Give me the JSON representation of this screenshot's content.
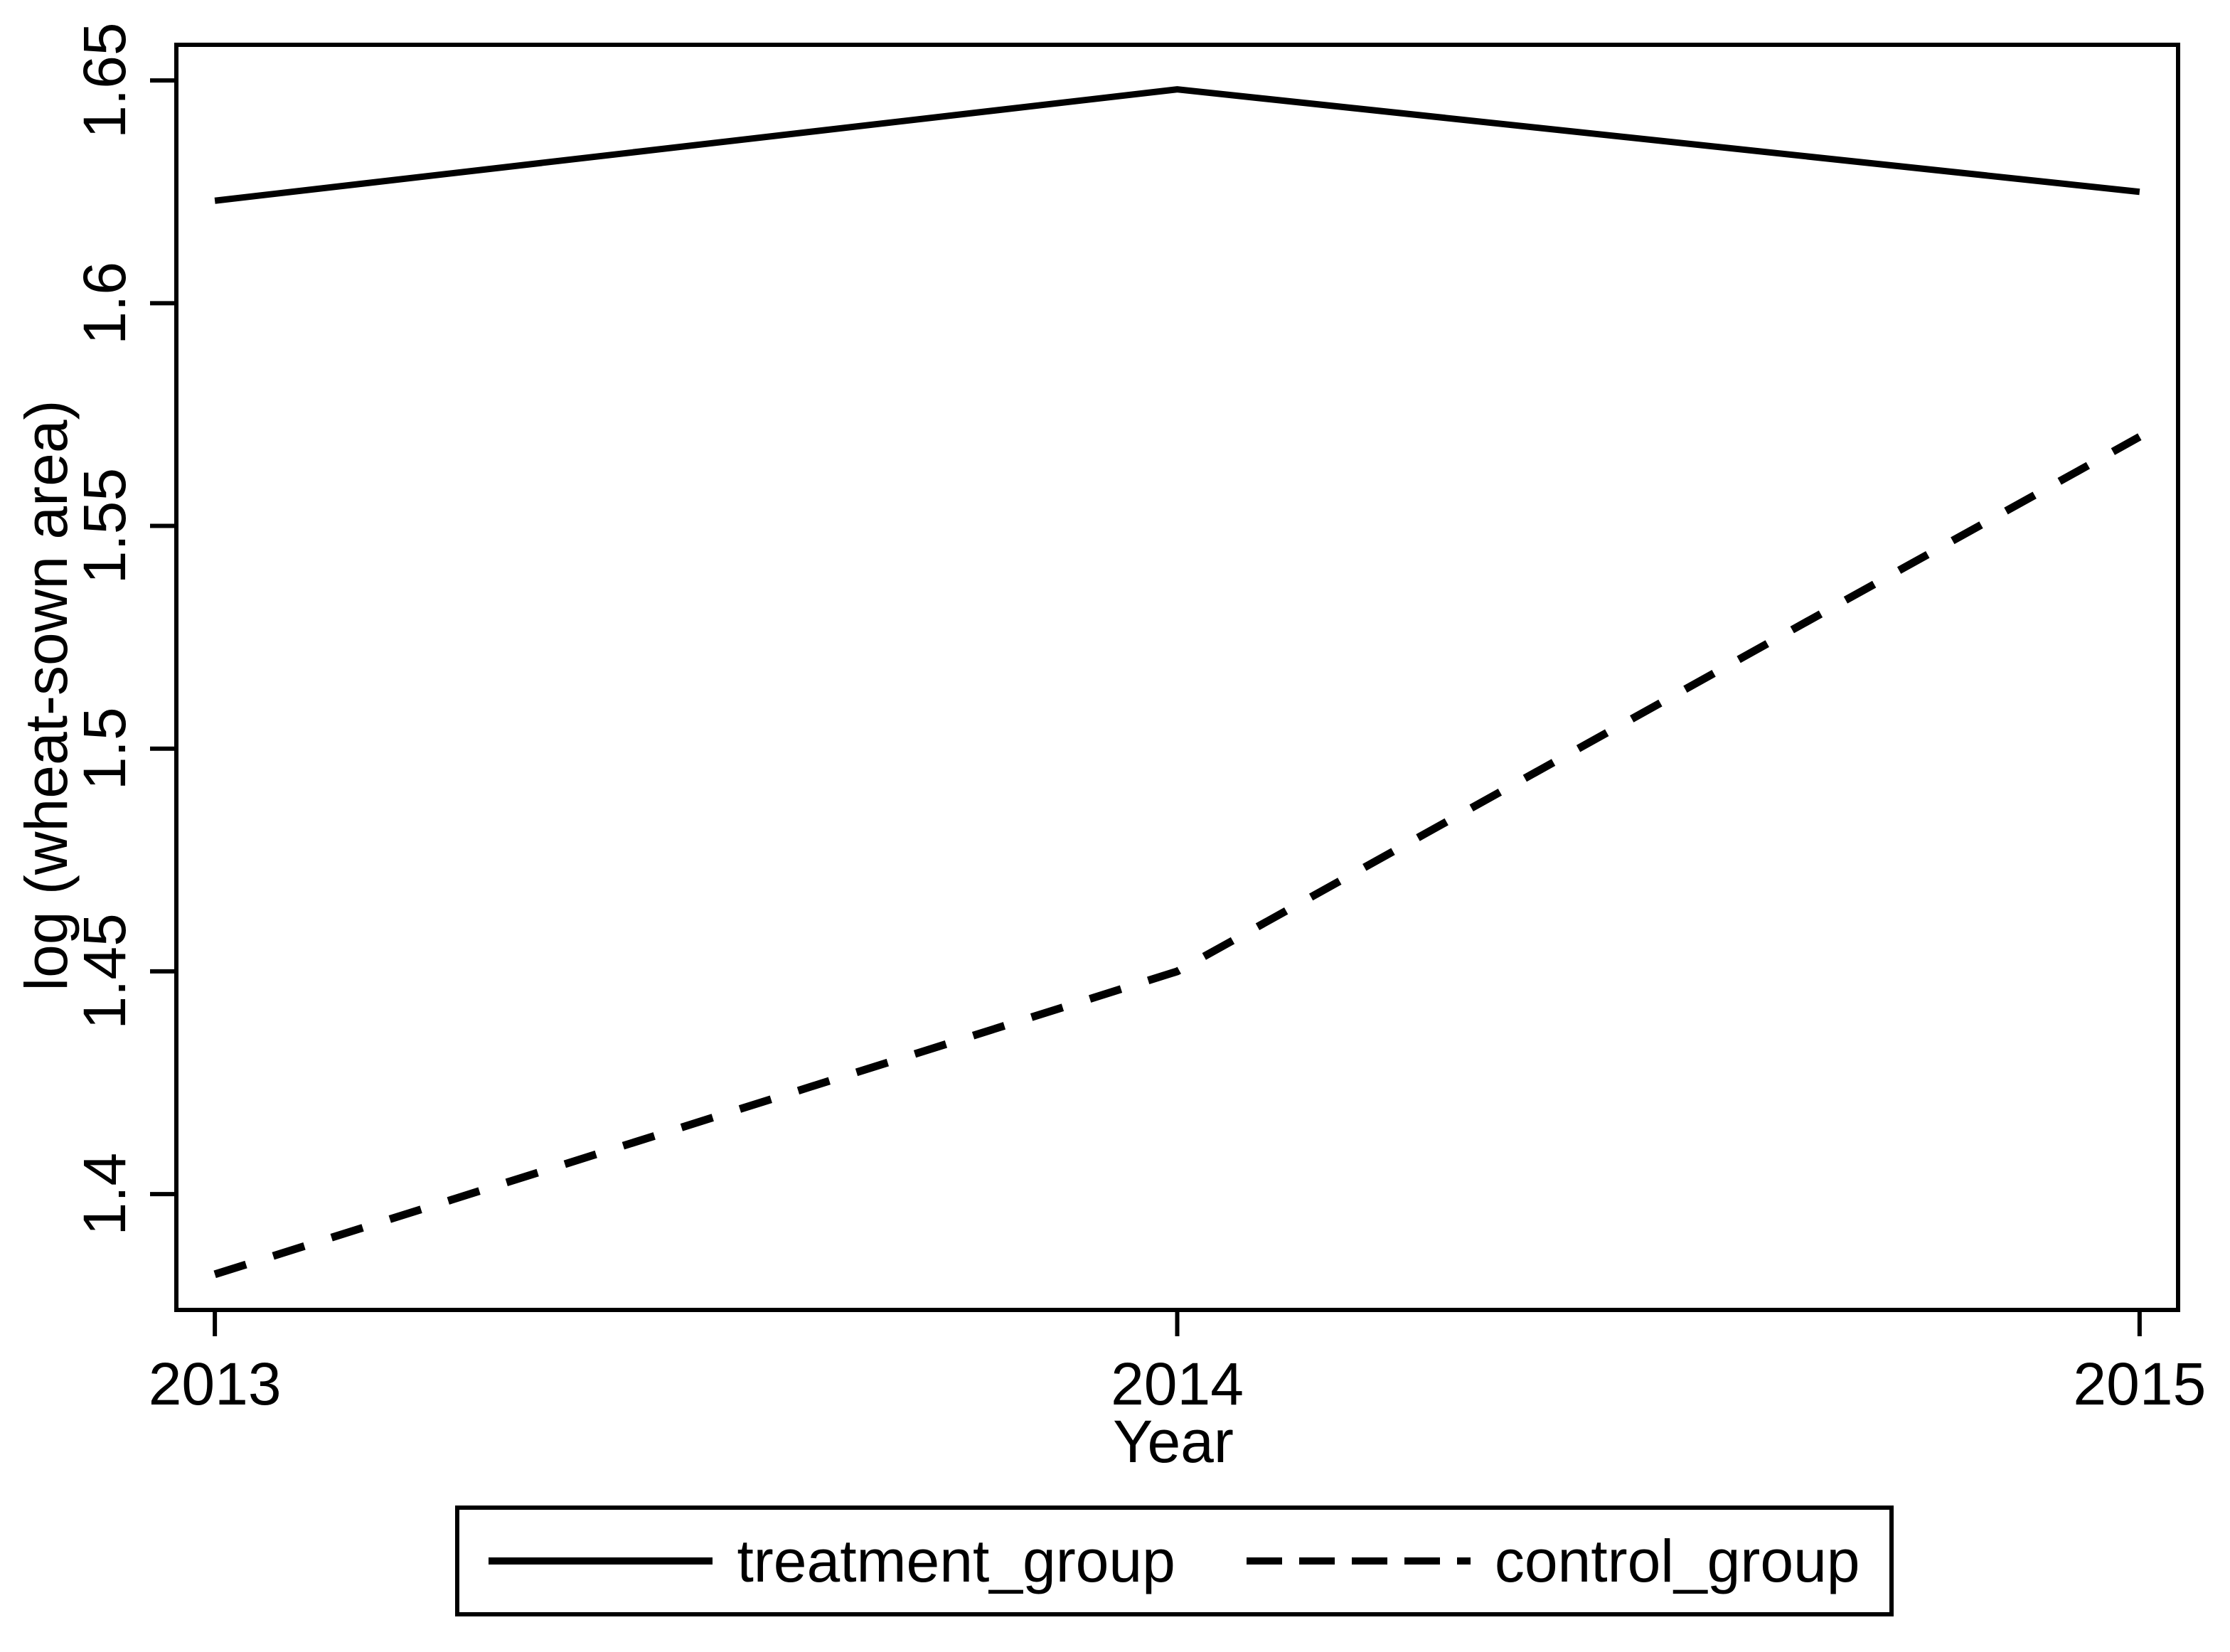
{
  "figure": {
    "background": "#ffffff",
    "line_color": "#000000",
    "text_color": "#000000"
  },
  "chart_data": {
    "type": "line",
    "x": [
      2013,
      2014,
      2015
    ],
    "x_tick_labels": [
      "2013",
      "2014",
      "2015"
    ],
    "y_ticks": [
      1.4,
      1.45,
      1.5,
      1.55,
      1.6,
      1.65
    ],
    "y_tick_labels": [
      "1.4",
      "1.45",
      "1.5",
      "1.55",
      "1.6",
      "1.65"
    ],
    "xlabel": "Year",
    "ylabel": "log (wheat-sown area)",
    "xlim": [
      2012.96,
      2015.04
    ],
    "ylim": [
      1.374,
      1.658
    ],
    "grid": false,
    "legend_position": "bottom",
    "series": [
      {
        "name": "treatment_group",
        "style": "solid",
        "values": [
          1.623,
          1.648,
          1.625
        ]
      },
      {
        "name": "control_group",
        "style": "dashed",
        "values": [
          1.382,
          1.45,
          1.57
        ]
      }
    ]
  },
  "legend": {
    "items": [
      {
        "label": "treatment_group",
        "style": "solid"
      },
      {
        "label": "control_group",
        "style": "dashed"
      }
    ]
  }
}
